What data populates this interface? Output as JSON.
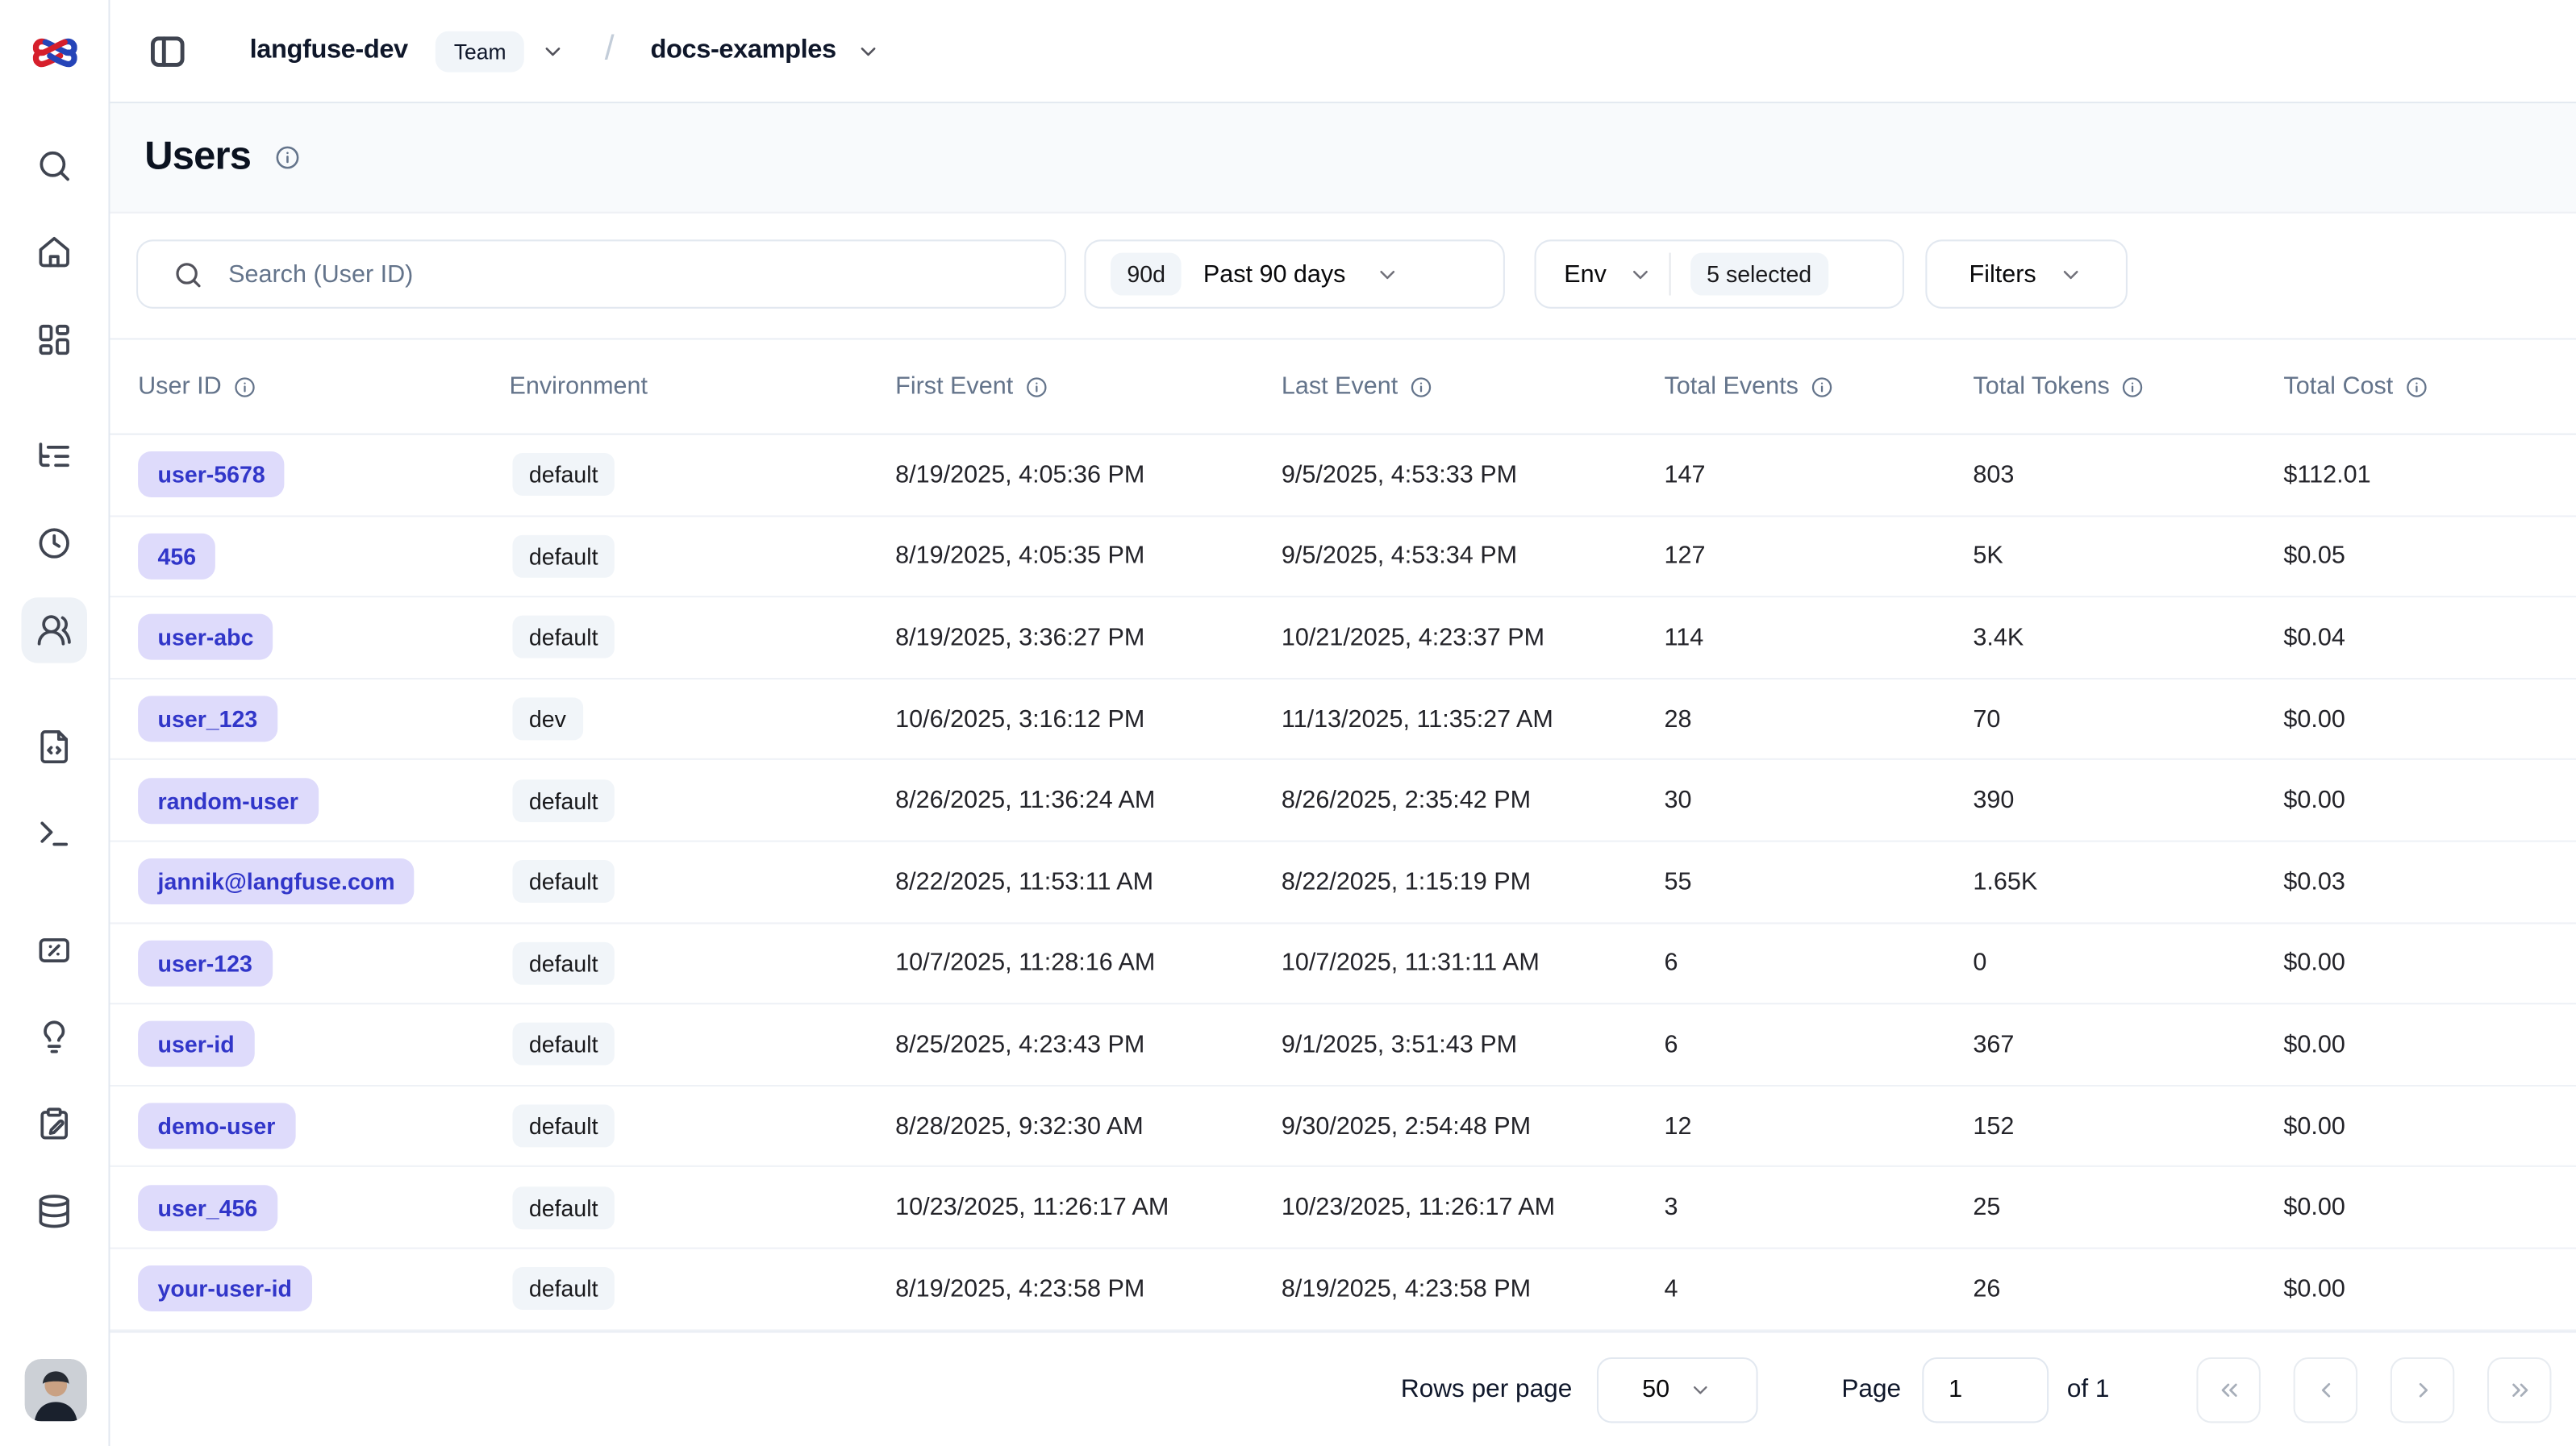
{
  "topbar": {
    "org_name": "langfuse-dev",
    "org_type_badge": "Team",
    "project_name": "docs-examples"
  },
  "page": {
    "title": "Users"
  },
  "filters": {
    "search_placeholder": "Search (User ID)",
    "date_range_badge": "90d",
    "date_range_label": "Past 90 days",
    "env_label": "Env",
    "env_selected": "5 selected",
    "filters_label": "Filters"
  },
  "table": {
    "columns": [
      {
        "key": "user-id",
        "label": "User ID",
        "info": true
      },
      {
        "key": "environment",
        "label": "Environment",
        "info": false
      },
      {
        "key": "first-event",
        "label": "First Event",
        "info": true
      },
      {
        "key": "last-event",
        "label": "Last Event",
        "info": true
      },
      {
        "key": "total-events",
        "label": "Total Events",
        "info": true
      },
      {
        "key": "total-tokens",
        "label": "Total Tokens",
        "info": true
      },
      {
        "key": "total-cost",
        "label": "Total Cost",
        "info": true
      }
    ],
    "rows": [
      {
        "user_id": "user-5678",
        "environment": "default",
        "first_event": "8/19/2025, 4:05:36 PM",
        "last_event": "9/5/2025, 4:53:33 PM",
        "total_events": "147",
        "total_tokens": "803",
        "total_cost": "$112.01"
      },
      {
        "user_id": "456",
        "environment": "default",
        "first_event": "8/19/2025, 4:05:35 PM",
        "last_event": "9/5/2025, 4:53:34 PM",
        "total_events": "127",
        "total_tokens": "5K",
        "total_cost": "$0.05"
      },
      {
        "user_id": "user-abc",
        "environment": "default",
        "first_event": "8/19/2025, 3:36:27 PM",
        "last_event": "10/21/2025, 4:23:37 PM",
        "total_events": "114",
        "total_tokens": "3.4K",
        "total_cost": "$0.04"
      },
      {
        "user_id": "user_123",
        "environment": "dev",
        "first_event": "10/6/2025, 3:16:12 PM",
        "last_event": "11/13/2025, 11:35:27 AM",
        "total_events": "28",
        "total_tokens": "70",
        "total_cost": "$0.00"
      },
      {
        "user_id": "random-user",
        "environment": "default",
        "first_event": "8/26/2025, 11:36:24 AM",
        "last_event": "8/26/2025, 2:35:42 PM",
        "total_events": "30",
        "total_tokens": "390",
        "total_cost": "$0.00"
      },
      {
        "user_id": "jannik@langfuse.com",
        "environment": "default",
        "first_event": "8/22/2025, 11:53:11 AM",
        "last_event": "8/22/2025, 1:15:19 PM",
        "total_events": "55",
        "total_tokens": "1.65K",
        "total_cost": "$0.03"
      },
      {
        "user_id": "user-123",
        "environment": "default",
        "first_event": "10/7/2025, 11:28:16 AM",
        "last_event": "10/7/2025, 11:31:11 AM",
        "total_events": "6",
        "total_tokens": "0",
        "total_cost": "$0.00"
      },
      {
        "user_id": "user-id",
        "environment": "default",
        "first_event": "8/25/2025, 4:23:43 PM",
        "last_event": "9/1/2025, 3:51:43 PM",
        "total_events": "6",
        "total_tokens": "367",
        "total_cost": "$0.00"
      },
      {
        "user_id": "demo-user",
        "environment": "default",
        "first_event": "8/28/2025, 9:32:30 AM",
        "last_event": "9/30/2025, 2:54:48 PM",
        "total_events": "12",
        "total_tokens": "152",
        "total_cost": "$0.00"
      },
      {
        "user_id": "user_456",
        "environment": "default",
        "first_event": "10/23/2025, 11:26:17 AM",
        "last_event": "10/23/2025, 11:26:17 AM",
        "total_events": "3",
        "total_tokens": "25",
        "total_cost": "$0.00"
      },
      {
        "user_id": "your-user-id",
        "environment": "default",
        "first_event": "8/19/2025, 4:23:58 PM",
        "last_event": "8/19/2025, 4:23:58 PM",
        "total_events": "4",
        "total_tokens": "26",
        "total_cost": "$0.00"
      }
    ]
  },
  "pagination": {
    "rows_per_page_label": "Rows per page",
    "rows_per_page": "50",
    "page_label": "Page",
    "page": "1",
    "of_label": "of 1"
  },
  "sidebar": {
    "items": [
      "search",
      "home",
      "dashboards",
      "tracing",
      "sessions",
      "users",
      "prompts",
      "playground",
      "evaluation",
      "llm-as-judge",
      "annotation",
      "datasets"
    ],
    "active_item": "users"
  },
  "colors": {
    "user_badge_bg": "#dedbfb",
    "user_badge_text": "#3136c9",
    "chip_bg": "#f1f5f9",
    "border": "#e2e8f0",
    "muted_text": "#64748b",
    "logo_red": "#d61f2c",
    "logo_blue": "#2544b8"
  }
}
